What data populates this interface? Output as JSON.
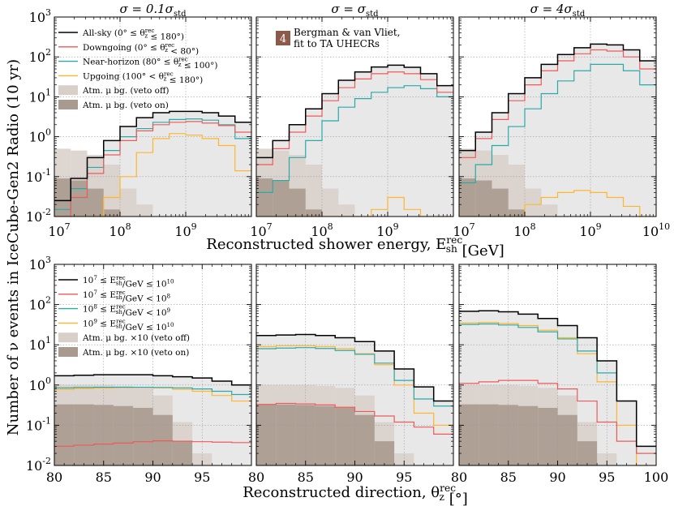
{
  "figure": {
    "y_axis_label": "Number of ν events in IceCube-Gen2 Radio (10 yr)",
    "top_x_axis_label": "Reconstructed shower energy, E_sh^rec [GeV]",
    "bottom_x_axis_label": "Reconstructed direction, θ_z^rec [°]",
    "column_titles": [
      "σ = 0.1σ_std",
      "σ = σ_std",
      "σ = 4σ_std"
    ],
    "badge": {
      "number": "4",
      "line1": "Bergman & van Vliet,",
      "line2": "fit to TA UHECRs",
      "color": "#8b5a4a"
    },
    "top_legend": [
      "All-sky (0° ≤ θ_z^rec ≤ 180°)",
      "Downgoing (0° ≤ θ_z^rec < 80°)",
      "Near-horizon (80° ≤ θ_z^rec ≤ 100°)",
      "Upgoing (100° < θ_z^rec ≤ 180°)",
      "Atm. μ bg. (veto off)",
      "Atm. μ bg. (veto on)"
    ],
    "bottom_legend": [
      "10^7 ≤ E_sh^rec/GeV ≤ 10^10",
      "10^7 ≤ E_sh^rec/GeV < 10^8",
      "10^8 ≤ E_sh^rec/GeV < 10^9",
      "10^9 ≤ E_sh^rec/GeV ≤ 10^10",
      "Atm. μ bg. ×10 (veto off)",
      "Atm. μ bg. ×10 (veto on)"
    ],
    "y_ticks": [
      "10^-2",
      "10^-1",
      "10^0",
      "10^1",
      "10^2",
      "10^3"
    ],
    "energy_ticks": [
      "10^7",
      "10^8",
      "10^9",
      "10^10"
    ],
    "direction_ticks": [
      "80",
      "85",
      "90",
      "95",
      "100"
    ],
    "colors": {
      "black": "#000000",
      "red": "#ee5a5a",
      "teal": "#2aa9a9",
      "orange": "#ffb52e",
      "bg_off": "#d8cfc9",
      "bg_on": "#a89a8e",
      "fill": "#e8e8e8"
    }
  },
  "chart_data": [
    {
      "type": "step-histogram",
      "panel": "energy",
      "title": "σ = 0.1σ_std",
      "xscale": "log",
      "xlim": [
        10000000.0,
        10000000000.0
      ],
      "ylim": [
        0.01,
        1000
      ],
      "x_edges_log10": [
        7.0,
        7.25,
        7.5,
        7.75,
        8.0,
        8.25,
        8.5,
        8.75,
        9.0,
        9.25,
        9.5,
        9.75,
        10.0
      ],
      "series": [
        {
          "name": "All-sky (0° ≤ θ_z^rec ≤ 180°)",
          "color": "black",
          "values": [
            0.025,
            0.09,
            0.3,
            0.8,
            1.8,
            3.0,
            4.0,
            4.3,
            4.3,
            4.0,
            3.3,
            2.3
          ]
        },
        {
          "name": "Downgoing (0° ≤ θ_z^rec < 80°)",
          "color": "red",
          "values": [
            0.008,
            0.03,
            0.12,
            0.35,
            0.8,
            1.4,
            2.0,
            2.3,
            2.4,
            2.2,
            1.9,
            1.3
          ]
        },
        {
          "name": "Near-horizon (80° ≤ θ_z^rec ≤ 100°)",
          "color": "teal",
          "values": [
            0.015,
            0.05,
            0.17,
            0.45,
            1.0,
            1.6,
            2.3,
            2.7,
            2.8,
            2.6,
            2.0,
            0.9
          ]
        },
        {
          "name": "Upgoing (100° < θ_z^rec ≤ 180°)",
          "color": "orange",
          "values": [
            0.005,
            0.005,
            0.01,
            0.03,
            0.1,
            0.4,
            0.9,
            1.2,
            1.1,
            0.9,
            0.6,
            0.14
          ]
        },
        {
          "name": "Atm. μ bg. (veto off)",
          "color": "bg_off",
          "values": [
            0.5,
            0.45,
            0.35,
            0.2,
            0.05,
            0.02,
            0.008,
            0.005,
            0.003,
            0.002,
            0.002,
            0.002
          ]
        },
        {
          "name": "Atm. μ bg. (veto on)",
          "color": "bg_on",
          "values": [
            0.09,
            0.08,
            0.05,
            0.015,
            0.004,
            0.003,
            0.002,
            0.002,
            0.002,
            0.002,
            0.002,
            0.002
          ]
        }
      ]
    },
    {
      "type": "step-histogram",
      "panel": "energy",
      "title": "σ = σ_std",
      "xscale": "log",
      "xlim": [
        10000000.0,
        10000000000.0
      ],
      "ylim": [
        0.01,
        1000
      ],
      "x_edges_log10": [
        7.0,
        7.25,
        7.5,
        7.75,
        8.0,
        8.25,
        8.5,
        8.75,
        9.0,
        9.25,
        9.5,
        9.75,
        10.0
      ],
      "series": [
        {
          "name": "All-sky (0° ≤ θ_z^rec ≤ 180°)",
          "color": "black",
          "values": [
            0.3,
            0.8,
            2.0,
            5.0,
            12.0,
            26.0,
            42.0,
            56.0,
            62.0,
            55.0,
            38.0,
            19.0
          ]
        },
        {
          "name": "Downgoing (0° ≤ θ_z^rec < 80°)",
          "color": "red",
          "values": [
            0.2,
            0.5,
            1.3,
            3.3,
            8.0,
            17.0,
            28.0,
            38.0,
            42.0,
            38.0,
            27.0,
            13.0
          ]
        },
        {
          "name": "Near-horizon (80° ≤ θ_z^rec ≤ 100°)",
          "color": "teal",
          "values": [
            0.04,
            0.08,
            0.3,
            0.8,
            2.5,
            5.5,
            9.0,
            13.0,
            17.0,
            19.0,
            16.0,
            10.0
          ]
        },
        {
          "name": "Upgoing (100° < θ_z^rec ≤ 180°)",
          "color": "orange",
          "values": [
            0.005,
            0.005,
            0.005,
            0.005,
            0.005,
            0.005,
            0.005,
            0.015,
            0.03,
            0.015,
            0.005,
            0.005
          ]
        },
        {
          "name": "Atm. μ bg. (veto off)",
          "color": "bg_off",
          "values": [
            0.5,
            0.45,
            0.35,
            0.2,
            0.05,
            0.02,
            0.008,
            0.005,
            0.003,
            0.002,
            0.002,
            0.002
          ]
        },
        {
          "name": "Atm. μ bg. (veto on)",
          "color": "bg_on",
          "values": [
            0.09,
            0.08,
            0.05,
            0.015,
            0.004,
            0.003,
            0.002,
            0.002,
            0.002,
            0.002,
            0.002,
            0.002
          ]
        }
      ]
    },
    {
      "type": "step-histogram",
      "panel": "energy",
      "title": "σ = 4σ_std",
      "xscale": "log",
      "xlim": [
        10000000.0,
        10000000000.0
      ],
      "ylim": [
        0.01,
        1000
      ],
      "x_edges_log10": [
        7.0,
        7.25,
        7.5,
        7.75,
        8.0,
        8.25,
        8.5,
        8.75,
        9.0,
        9.25,
        9.5,
        9.75,
        10.0
      ],
      "series": [
        {
          "name": "All-sky (0° ≤ θ_z^rec ≤ 180°)",
          "color": "black",
          "values": [
            0.45,
            1.3,
            4.0,
            12.0,
            30.0,
            65.0,
            115.0,
            170.0,
            210.0,
            200.0,
            150.0,
            80.0
          ]
        },
        {
          "name": "Downgoing (0° ≤ θ_z^rec < 80°)",
          "color": "red",
          "values": [
            0.3,
            0.9,
            2.7,
            8.0,
            20.0,
            45.0,
            80.0,
            120.0,
            150.0,
            140.0,
            100.0,
            50.0
          ]
        },
        {
          "name": "Near-horizon (80° ≤ θ_z^rec ≤ 100°)",
          "color": "teal",
          "values": [
            0.07,
            0.2,
            0.6,
            1.8,
            5.0,
            12.0,
            25.0,
            45.0,
            65.0,
            65.0,
            45.0,
            20.0
          ]
        },
        {
          "name": "Upgoing (100° < θ_z^rec ≤ 180°)",
          "color": "orange",
          "values": [
            0.005,
            0.005,
            0.005,
            0.01,
            0.02,
            0.03,
            0.04,
            0.045,
            0.04,
            0.03,
            0.018,
            0.01
          ]
        },
        {
          "name": "Atm. μ bg. (veto off)",
          "color": "bg_off",
          "values": [
            0.5,
            0.45,
            0.35,
            0.2,
            0.05,
            0.02,
            0.008,
            0.005,
            0.003,
            0.002,
            0.002,
            0.002
          ]
        },
        {
          "name": "Atm. μ bg. (veto on)",
          "color": "bg_on",
          "values": [
            0.09,
            0.08,
            0.05,
            0.015,
            0.004,
            0.003,
            0.002,
            0.002,
            0.002,
            0.002,
            0.002,
            0.002
          ]
        }
      ]
    },
    {
      "type": "step-histogram",
      "panel": "direction",
      "title": "σ = 0.1σ_std",
      "xscale": "linear",
      "xlim": [
        80,
        100
      ],
      "ylim": [
        0.01,
        1000
      ],
      "x_edges": [
        80,
        82,
        84,
        86,
        88,
        90,
        92,
        94,
        96,
        98,
        100
      ],
      "series": [
        {
          "name": "10^7 ≤ E_sh^rec/GeV ≤ 10^10",
          "color": "black",
          "values": [
            1.7,
            1.75,
            1.8,
            1.8,
            1.8,
            1.7,
            1.6,
            1.5,
            1.25,
            1.0
          ]
        },
        {
          "name": "10^7 ≤ E_sh^rec/GeV < 10^8",
          "color": "red",
          "values": [
            0.03,
            0.032,
            0.034,
            0.036,
            0.039,
            0.041,
            0.04,
            0.039,
            0.038,
            0.037
          ]
        },
        {
          "name": "10^8 ≤ E_sh^rec/GeV < 10^9",
          "color": "teal",
          "values": [
            0.85,
            0.87,
            0.88,
            0.88,
            0.88,
            0.87,
            0.85,
            0.8,
            0.7,
            0.58
          ]
        },
        {
          "name": "10^9 ≤ E_sh^rec/GeV ≤ 10^10",
          "color": "orange",
          "values": [
            0.78,
            0.82,
            0.85,
            0.87,
            0.88,
            0.85,
            0.78,
            0.7,
            0.55,
            0.4
          ]
        },
        {
          "name": "Atm. μ bg. ×10 (veto off)",
          "color": "bg_off",
          "values": [
            1.0,
            1.0,
            1.0,
            0.95,
            0.85,
            0.55,
            0.12,
            0.02,
            0.005,
            0.005
          ]
        },
        {
          "name": "Atm. μ bg. ×10 (veto on)",
          "color": "bg_on",
          "values": [
            0.33,
            0.33,
            0.32,
            0.3,
            0.27,
            0.18,
            0.04,
            0.005,
            0.005,
            0.005
          ]
        }
      ]
    },
    {
      "type": "step-histogram",
      "panel": "direction",
      "title": "σ = σ_std",
      "xscale": "linear",
      "xlim": [
        80,
        100
      ],
      "ylim": [
        0.01,
        1000
      ],
      "x_edges": [
        80,
        82,
        84,
        86,
        88,
        90,
        92,
        94,
        96,
        98,
        100
      ],
      "series": [
        {
          "name": "10^7 ≤ E_sh^rec/GeV ≤ 10^10",
          "color": "black",
          "values": [
            17.0,
            17.5,
            18.0,
            17.0,
            15.0,
            12.0,
            7.0,
            2.5,
            0.9,
            0.4
          ]
        },
        {
          "name": "10^7 ≤ E_sh^rec/GeV < 10^8",
          "color": "red",
          "values": [
            0.33,
            0.35,
            0.34,
            0.32,
            0.28,
            0.22,
            0.17,
            0.12,
            0.09,
            0.06
          ]
        },
        {
          "name": "10^8 ≤ E_sh^rec/GeV < 10^9",
          "color": "teal",
          "values": [
            8.0,
            8.3,
            8.5,
            8.1,
            7.2,
            5.8,
            3.5,
            1.3,
            0.45,
            0.3
          ]
        },
        {
          "name": "10^9 ≤ E_sh^rec/GeV ≤ 10^10",
          "color": "orange",
          "values": [
            9.0,
            9.5,
            9.5,
            9.0,
            8.0,
            6.0,
            3.2,
            1.0,
            0.2,
            0.1
          ]
        },
        {
          "name": "Atm. μ bg. ×10 (veto off)",
          "color": "bg_off",
          "values": [
            1.0,
            1.0,
            1.0,
            0.95,
            0.85,
            0.55,
            0.12,
            0.02,
            0.005,
            0.005
          ]
        },
        {
          "name": "Atm. μ bg. ×10 (veto on)",
          "color": "bg_on",
          "values": [
            0.33,
            0.33,
            0.32,
            0.3,
            0.27,
            0.18,
            0.04,
            0.005,
            0.005,
            0.005
          ]
        }
      ]
    },
    {
      "type": "step-histogram",
      "panel": "direction",
      "title": "σ = 4σ_std",
      "xscale": "linear",
      "xlim": [
        80,
        100
      ],
      "ylim": [
        0.01,
        1000
      ],
      "x_edges": [
        80,
        82,
        84,
        86,
        88,
        90,
        92,
        94,
        96,
        98,
        100
      ],
      "series": [
        {
          "name": "10^7 ≤ E_sh^rec/GeV ≤ 10^10",
          "color": "black",
          "values": [
            68.0,
            70.0,
            66.0,
            58.0,
            45.0,
            30.0,
            15.0,
            4.0,
            0.4,
            0.03
          ]
        },
        {
          "name": "10^7 ≤ E_sh^rec/GeV < 10^8",
          "color": "red",
          "values": [
            1.1,
            1.2,
            1.3,
            1.3,
            1.1,
            0.8,
            0.4,
            0.12,
            0.04,
            0.02
          ]
        },
        {
          "name": "10^8 ≤ E_sh^rec/GeV < 10^9",
          "color": "teal",
          "values": [
            32.0,
            33.0,
            31.0,
            27.0,
            21.0,
            14.0,
            7.0,
            2.0,
            0.4,
            0.02
          ]
        },
        {
          "name": "10^9 ≤ E_sh^rec/GeV ≤ 10^10",
          "color": "orange",
          "values": [
            35.0,
            36.0,
            34.0,
            30.0,
            23.0,
            15.0,
            6.0,
            1.2,
            0.1,
            0.01
          ]
        },
        {
          "name": "Atm. μ bg. ×10 (veto off)",
          "color": "bg_off",
          "values": [
            1.0,
            1.0,
            1.0,
            0.95,
            0.85,
            0.55,
            0.12,
            0.02,
            0.005,
            0.005
          ]
        },
        {
          "name": "Atm. μ bg. ×10 (veto on)",
          "color": "bg_on",
          "values": [
            0.33,
            0.33,
            0.32,
            0.3,
            0.27,
            0.18,
            0.04,
            0.005,
            0.005,
            0.005
          ]
        }
      ]
    }
  ]
}
